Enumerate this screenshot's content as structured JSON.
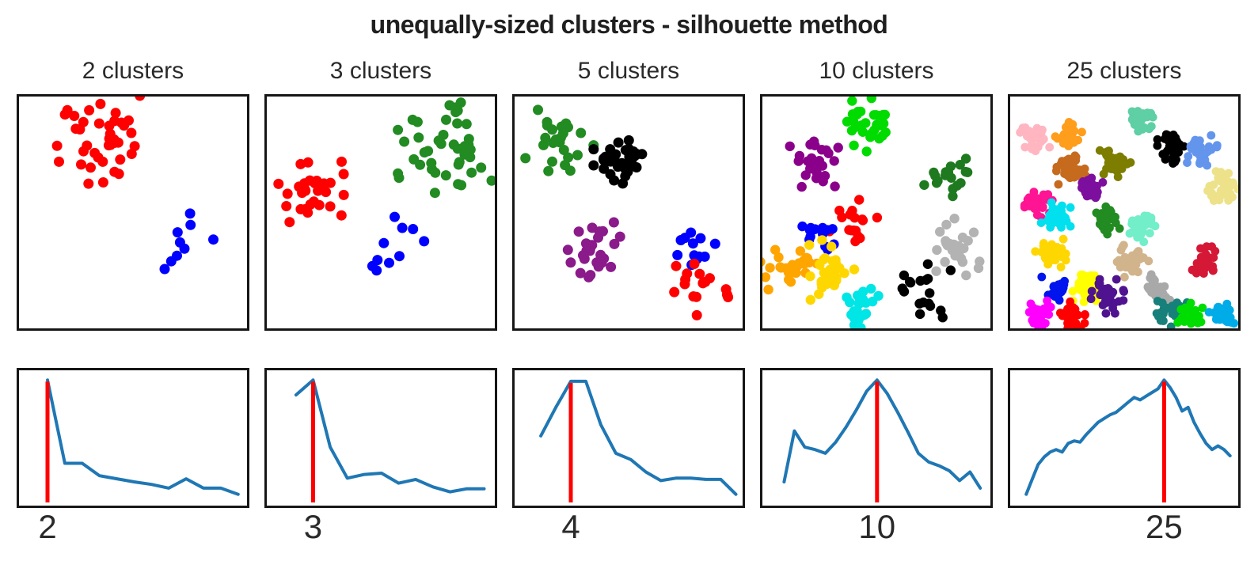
{
  "figure": {
    "title": "unequally-sized clusters - silhouette method"
  },
  "chart_data": {
    "type": "line",
    "title": "unequally-sized clusters - silhouette method",
    "layout": "5 columns x 2 rows; top row: scatter plots of clustered 2-D points; bottom row: silhouette score vs number of clusters k, red vertical line marks the best k (labeled on x-axis); no y-axis ticks shown",
    "line_color": "#1f77b4",
    "best_k_line_color": "#ff0000",
    "axis_color": "#161616",
    "panels": [
      {
        "title": "2 clusters",
        "best_k_label": "2",
        "scatter": {
          "dot_radius": 6.5,
          "clusters": [
            {
              "color": "#ff0000",
              "cx": 0.355,
              "cy": 0.215,
              "n": 40,
              "s": 0.095
            },
            {
              "color": "#0000ff",
              "cx": 0.687,
              "cy": 0.645,
              "n": 9,
              "s": 0.072
            }
          ]
        },
        "silhouette": {
          "best_k": 2,
          "x_start": 0.125,
          "x_step": 0.076,
          "peak_index": 0,
          "values_norm": [
            0.96,
            0.29,
            0.29,
            0.19,
            0.165,
            0.14,
            0.12,
            0.09,
            0.165,
            0.09,
            0.09,
            0.04
          ]
        }
      },
      {
        "title": "3 clusters",
        "best_k_label": "3",
        "scatter": {
          "dot_radius": 6.5,
          "clusters": [
            {
              "color": "#228b22",
              "cx": 0.782,
              "cy": 0.233,
              "n": 42,
              "s": 0.09
            },
            {
              "color": "#ff0000",
              "cx": 0.187,
              "cy": 0.426,
              "n": 30,
              "s": 0.08
            },
            {
              "color": "#0000ff",
              "cx": 0.554,
              "cy": 0.68,
              "n": 10,
              "s": 0.07
            }
          ]
        },
        "silhouette": {
          "best_k": 3,
          "x_start": 0.128,
          "x_step": 0.075,
          "peak_index": 1,
          "values_norm": [
            0.84,
            0.96,
            0.42,
            0.17,
            0.2,
            0.21,
            0.13,
            0.16,
            0.1,
            0.06,
            0.085,
            0.085
          ]
        }
      },
      {
        "title": "5 clusters",
        "best_k_label": "4",
        "scatter": {
          "dot_radius": 6.5,
          "clusters": [
            {
              "color": "#228b22",
              "cx": 0.197,
              "cy": 0.172,
              "n": 24,
              "s": 0.065
            },
            {
              "color": "#000000",
              "cx": 0.473,
              "cy": 0.267,
              "n": 36,
              "s": 0.055
            },
            {
              "color": "#8b1a8b",
              "cx": 0.367,
              "cy": 0.672,
              "n": 28,
              "s": 0.058
            },
            {
              "color": "#0000ff",
              "cx": 0.786,
              "cy": 0.628,
              "n": 12,
              "s": 0.055
            },
            {
              "color": "#ff0000",
              "cx": 0.827,
              "cy": 0.818,
              "n": 16,
              "s": 0.055
            }
          ]
        },
        "silhouette": {
          "best_k": 4,
          "x_start": 0.115,
          "x_step": 0.0658,
          "peak_index": 2,
          "values_norm": [
            0.51,
            0.74,
            0.95,
            0.95,
            0.6,
            0.37,
            0.32,
            0.22,
            0.15,
            0.17,
            0.17,
            0.16,
            0.16,
            0.04
          ]
        }
      },
      {
        "title": "10 clusters",
        "best_k_label": "10",
        "scatter": {
          "dot_radius": 6.2,
          "clusters": [
            {
              "color": "#00db00",
              "cx": 0.456,
              "cy": 0.122,
              "n": 30,
              "s": 0.05
            },
            {
              "color": "#8b008b",
              "cx": 0.221,
              "cy": 0.297,
              "n": 26,
              "s": 0.05
            },
            {
              "color": "#1f7a1f",
              "cx": 0.82,
              "cy": 0.348,
              "n": 18,
              "s": 0.048
            },
            {
              "color": "#ff0000",
              "cx": 0.405,
              "cy": 0.537,
              "n": 17,
              "s": 0.048
            },
            {
              "color": "#0000ff",
              "cx": 0.262,
              "cy": 0.6,
              "n": 15,
              "s": 0.045
            },
            {
              "color": "#b3b3b3",
              "cx": 0.86,
              "cy": 0.645,
              "n": 26,
              "s": 0.055
            },
            {
              "color": "#ffa500",
              "cx": 0.112,
              "cy": 0.767,
              "n": 26,
              "s": 0.055
            },
            {
              "color": "#ffd700",
              "cx": 0.306,
              "cy": 0.757,
              "n": 30,
              "s": 0.06
            },
            {
              "color": "#00e5e5",
              "cx": 0.432,
              "cy": 0.915,
              "n": 26,
              "s": 0.05
            },
            {
              "color": "#000000",
              "cx": 0.712,
              "cy": 0.838,
              "n": 18,
              "s": 0.05
            }
          ]
        },
        "silhouette": {
          "best_k": 10,
          "x_start": 0.095,
          "x_step": 0.0453,
          "peak_index": 9,
          "values_norm": [
            0.14,
            0.55,
            0.42,
            0.4,
            0.37,
            0.46,
            0.58,
            0.72,
            0.87,
            0.96,
            0.85,
            0.7,
            0.54,
            0.37,
            0.3,
            0.27,
            0.23,
            0.15,
            0.22,
            0.09
          ]
        }
      },
      {
        "title": "25 clusters",
        "best_k_label": "25",
        "scatter": {
          "dot_radius": 5.4,
          "clusters": [
            {
              "color": "#ffb6c1",
              "cx": 0.108,
              "cy": 0.17,
              "n": 34,
              "s": 0.028
            },
            {
              "color": "#ff9d1c",
              "cx": 0.25,
              "cy": 0.172,
              "n": 30,
              "s": 0.028
            },
            {
              "color": "#5fcfa5",
              "cx": 0.575,
              "cy": 0.098,
              "n": 34,
              "s": 0.028
            },
            {
              "color": "#000000",
              "cx": 0.71,
              "cy": 0.228,
              "n": 30,
              "s": 0.028
            },
            {
              "color": "#6495ed",
              "cx": 0.842,
              "cy": 0.228,
              "n": 34,
              "s": 0.03
            },
            {
              "color": "#c66a1e",
              "cx": 0.262,
              "cy": 0.31,
              "n": 36,
              "s": 0.03
            },
            {
              "color": "#7d7d00",
              "cx": 0.46,
              "cy": 0.285,
              "n": 38,
              "s": 0.032
            },
            {
              "color": "#7d0f9e",
              "cx": 0.352,
              "cy": 0.39,
              "n": 28,
              "s": 0.024
            },
            {
              "color": "#ede28a",
              "cx": 0.94,
              "cy": 0.385,
              "n": 36,
              "s": 0.032
            },
            {
              "color": "#ff1493",
              "cx": 0.118,
              "cy": 0.452,
              "n": 34,
              "s": 0.03
            },
            {
              "color": "#00e0ee",
              "cx": 0.2,
              "cy": 0.512,
              "n": 34,
              "s": 0.028
            },
            {
              "color": "#228b22",
              "cx": 0.42,
              "cy": 0.535,
              "n": 30,
              "s": 0.026
            },
            {
              "color": "#72eec8",
              "cx": 0.572,
              "cy": 0.568,
              "n": 34,
              "s": 0.03
            },
            {
              "color": "#ffd700",
              "cx": 0.175,
              "cy": 0.672,
              "n": 34,
              "s": 0.03
            },
            {
              "color": "#d2b48c",
              "cx": 0.538,
              "cy": 0.71,
              "n": 34,
              "s": 0.03
            },
            {
              "color": "#d41836",
              "cx": 0.858,
              "cy": 0.712,
              "n": 32,
              "s": 0.028
            },
            {
              "color": "#0014ee",
              "cx": 0.198,
              "cy": 0.835,
              "n": 28,
              "s": 0.026
            },
            {
              "color": "#ffff00",
              "cx": 0.33,
              "cy": 0.812,
              "n": 38,
              "s": 0.032
            },
            {
              "color": "#4f1390",
              "cx": 0.425,
              "cy": 0.862,
              "n": 38,
              "s": 0.032
            },
            {
              "color": "#a9a9a9",
              "cx": 0.638,
              "cy": 0.832,
              "n": 32,
              "s": 0.028
            },
            {
              "color": "#ff00ff",
              "cx": 0.128,
              "cy": 0.945,
              "n": 34,
              "s": 0.03
            },
            {
              "color": "#ff0000",
              "cx": 0.268,
              "cy": 0.945,
              "n": 28,
              "s": 0.026
            },
            {
              "color": "#17807a",
              "cx": 0.71,
              "cy": 0.93,
              "n": 38,
              "s": 0.032
            },
            {
              "color": "#00dd00",
              "cx": 0.79,
              "cy": 0.955,
              "n": 32,
              "s": 0.028
            },
            {
              "color": "#00ace8",
              "cx": 0.93,
              "cy": 0.94,
              "n": 32,
              "s": 0.028
            }
          ]
        },
        "silhouette": {
          "best_k": 25,
          "x_start": 0.07,
          "x_step": 0.0263,
          "peak_index": 23,
          "values_norm": [
            0.04,
            0.16,
            0.28,
            0.34,
            0.38,
            0.4,
            0.38,
            0.45,
            0.47,
            0.46,
            0.52,
            0.57,
            0.62,
            0.65,
            0.68,
            0.7,
            0.74,
            0.78,
            0.82,
            0.8,
            0.83,
            0.86,
            0.89,
            0.96,
            0.9,
            0.82,
            0.71,
            0.74,
            0.62,
            0.53,
            0.45,
            0.4,
            0.43,
            0.4,
            0.35
          ]
        }
      }
    ]
  }
}
